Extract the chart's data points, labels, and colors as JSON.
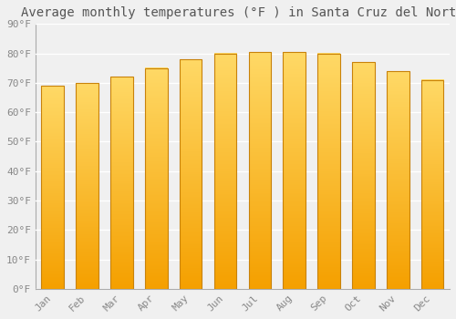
{
  "months": [
    "Jan",
    "Feb",
    "Mar",
    "Apr",
    "May",
    "Jun",
    "Jul",
    "Aug",
    "Sep",
    "Oct",
    "Nov",
    "Dec"
  ],
  "values": [
    69,
    70,
    72,
    75,
    78,
    80,
    80.5,
    80.5,
    80,
    77,
    74,
    71
  ],
  "bar_color_top": "#FFD966",
  "bar_color_bottom": "#F5A000",
  "bar_edge_color": "#C8820A",
  "title": "Average monthly temperatures (°F ) in Santa Cruz del Norte",
  "ylim": [
    0,
    90
  ],
  "background_color": "#f0f0f0",
  "grid_color": "#ffffff",
  "title_fontsize": 10,
  "tick_fontsize": 8,
  "font_family": "monospace"
}
